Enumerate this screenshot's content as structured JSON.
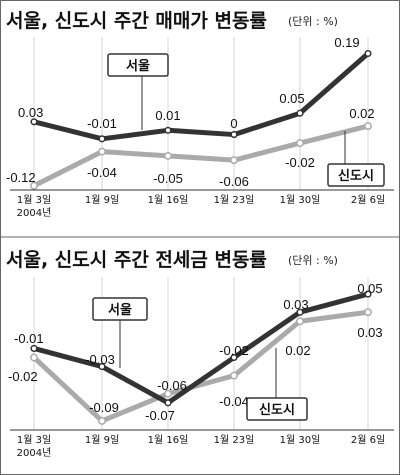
{
  "chart_data": [
    {
      "type": "line",
      "title": "서울, 신도시 주간 매매가 변동률",
      "unit": "(단위 : %)",
      "categories": [
        "1월 3일",
        "1월 9일",
        "1월 16일",
        "1월 23일",
        "1월 30일",
        "2월 6일"
      ],
      "year_note": "2004년",
      "series": [
        {
          "name": "서울",
          "values": [
            0.03,
            -0.01,
            0.01,
            0,
            0.05,
            0.19
          ],
          "labels": [
            "0.03",
            "-0.01",
            "0.01",
            "0",
            "0.05",
            "0.19"
          ],
          "color": "#333333"
        },
        {
          "name": "신도시",
          "values": [
            -0.12,
            -0.04,
            -0.05,
            -0.06,
            -0.02,
            0.02
          ],
          "labels": [
            "-0.12",
            "-0.04",
            "-0.05",
            "-0.06",
            "-0.02",
            "0.02"
          ],
          "color": "#aaaaaa"
        }
      ],
      "ylim": [
        -0.13,
        0.21
      ],
      "grid": true,
      "legend": "inline labels"
    },
    {
      "type": "line",
      "title": "서울, 신도시 주간 전세금 변동률",
      "unit": "(단위 : %)",
      "categories": [
        "1월 3일",
        "1월 9일",
        "1월 16일",
        "1월 23일",
        "1월 30일",
        "2월 6일"
      ],
      "year_note": "2004년",
      "series": [
        {
          "name": "서울",
          "values": [
            -0.01,
            -0.03,
            -0.07,
            -0.02,
            0.03,
            0.05
          ],
          "labels": [
            "-0.01",
            "-0.03",
            "-0.07",
            "-0.02",
            "0.03",
            "0.05"
          ],
          "color": "#333333"
        },
        {
          "name": "신도시",
          "values": [
            -0.02,
            -0.09,
            -0.06,
            -0.04,
            0.02,
            0.03
          ],
          "labels": [
            "-0.02",
            "-0.09",
            "-0.06",
            "-0.04",
            "0.02",
            "0.03"
          ],
          "color": "#aaaaaa"
        }
      ],
      "ylim": [
        -0.1,
        0.06
      ],
      "grid": true,
      "legend": "inline labels"
    }
  ]
}
